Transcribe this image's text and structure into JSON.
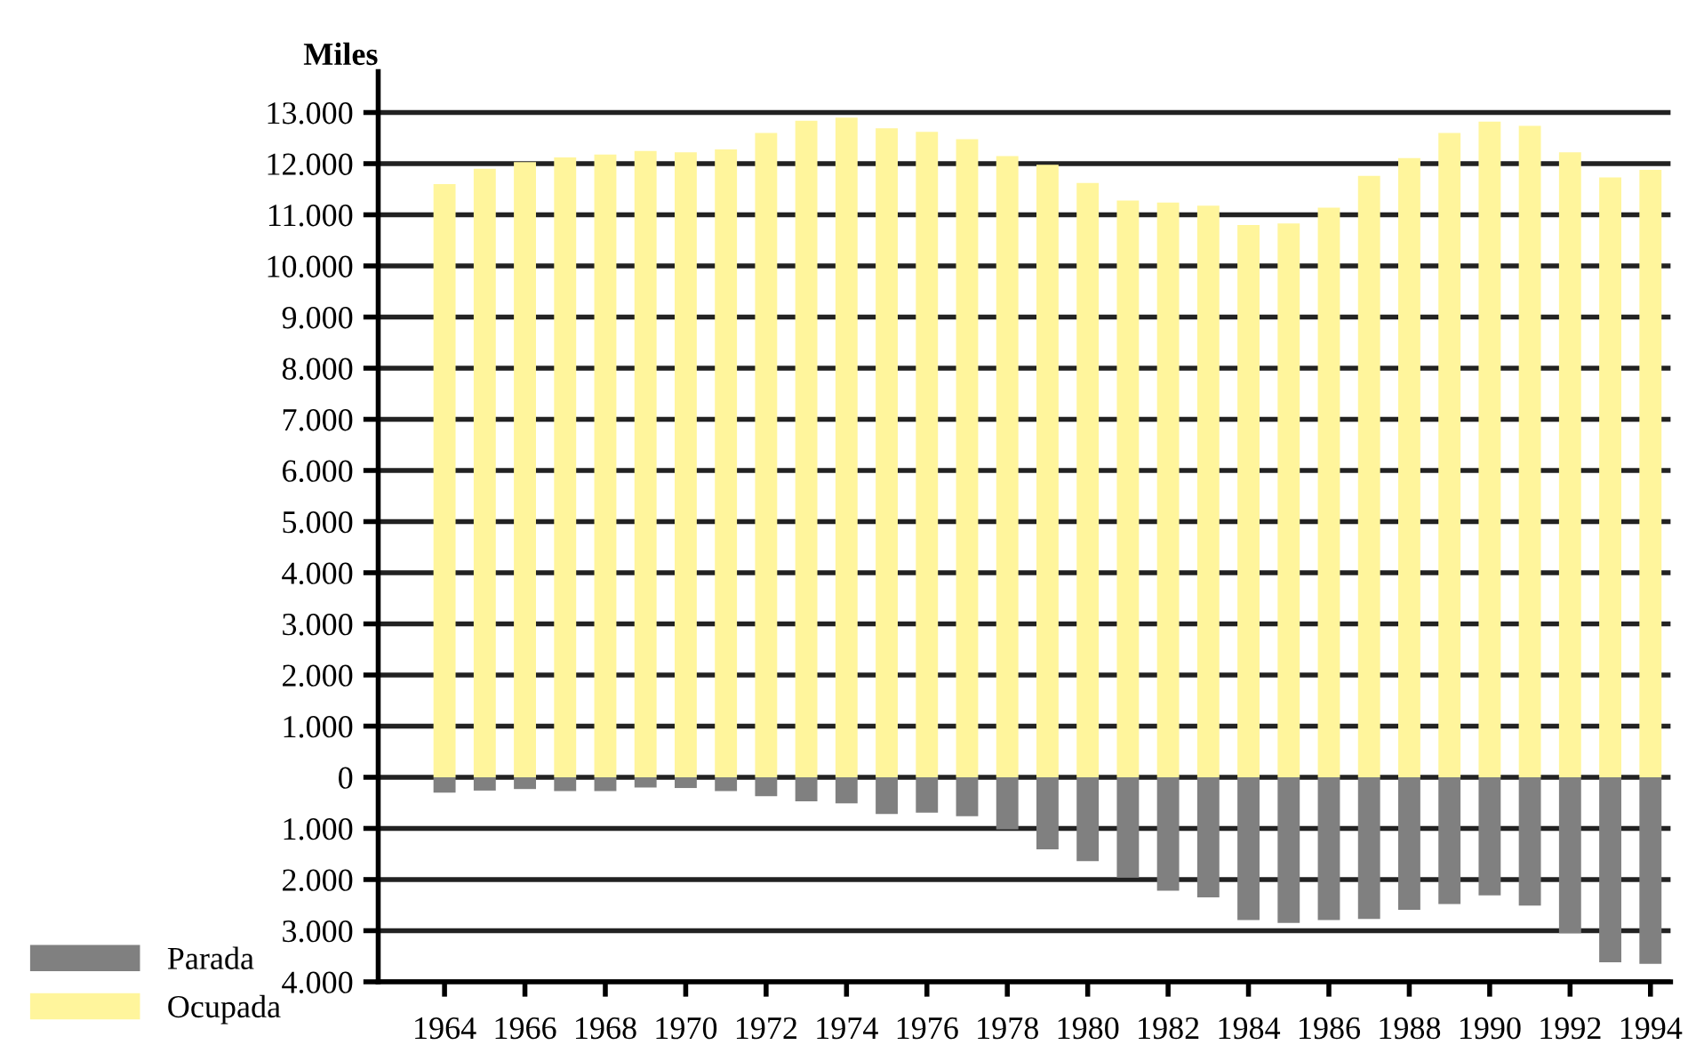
{
  "chart_data": {
    "type": "bar",
    "ylabel": "Miles",
    "stacked": true,
    "categories": [
      "1964",
      null,
      "1966",
      null,
      "1968",
      null,
      "1970",
      null,
      "1972",
      null,
      "1974",
      null,
      "1976",
      null,
      "1978",
      null,
      "1980",
      null,
      "1982",
      null,
      "1984",
      null,
      "1986",
      null,
      "1988",
      null,
      "1990",
      null,
      "1992",
      null,
      "1994"
    ],
    "series": [
      {
        "name": "Ocupada",
        "color": "#fff59c",
        "values": [
          11600,
          11900,
          12030,
          12120,
          12180,
          12250,
          12220,
          12280,
          12600,
          12840,
          12900,
          12690,
          12620,
          12480,
          12150,
          11980,
          11620,
          11280,
          11240,
          11180,
          10800,
          10830,
          11140,
          11760,
          12110,
          12600,
          12820,
          12740,
          12220,
          11730,
          11880
        ]
      },
      {
        "name": "Parada",
        "color": "#808080",
        "values": [
          -300,
          -260,
          -230,
          -270,
          -270,
          -200,
          -210,
          -270,
          -370,
          -470,
          -510,
          -720,
          -690,
          -760,
          -1020,
          -1410,
          -1640,
          -1960,
          -2220,
          -2350,
          -2790,
          -2850,
          -2790,
          -2770,
          -2590,
          -2480,
          -2310,
          -2510,
          -3050,
          -3620,
          -3650
        ]
      }
    ],
    "ylim": [
      -4000,
      13800
    ],
    "yticks": [
      {
        "value": -4000,
        "label": "4.000"
      },
      {
        "value": -3000,
        "label": "3.000"
      },
      {
        "value": -2000,
        "label": "2.000"
      },
      {
        "value": -1000,
        "label": "1.000"
      },
      0,
      {
        "value": 1000,
        "label": "1.000"
      },
      {
        "value": 2000,
        "label": "2.000"
      },
      {
        "value": 3000,
        "label": "3.000"
      },
      {
        "value": 4000,
        "label": "4.000"
      },
      {
        "value": 5000,
        "label": "5.000"
      },
      {
        "value": 6000,
        "label": "6.000"
      },
      {
        "value": 7000,
        "label": "7.000"
      },
      {
        "value": 8000,
        "label": "8.000"
      },
      {
        "value": 9000,
        "label": "9.000"
      },
      {
        "value": 10000,
        "label": "10.000"
      },
      {
        "value": 11000,
        "label": "11.000"
      },
      {
        "value": 12000,
        "label": "12.000"
      },
      {
        "value": 13000,
        "label": "13.000"
      }
    ],
    "grid": "y",
    "legend": "bottom left"
  }
}
